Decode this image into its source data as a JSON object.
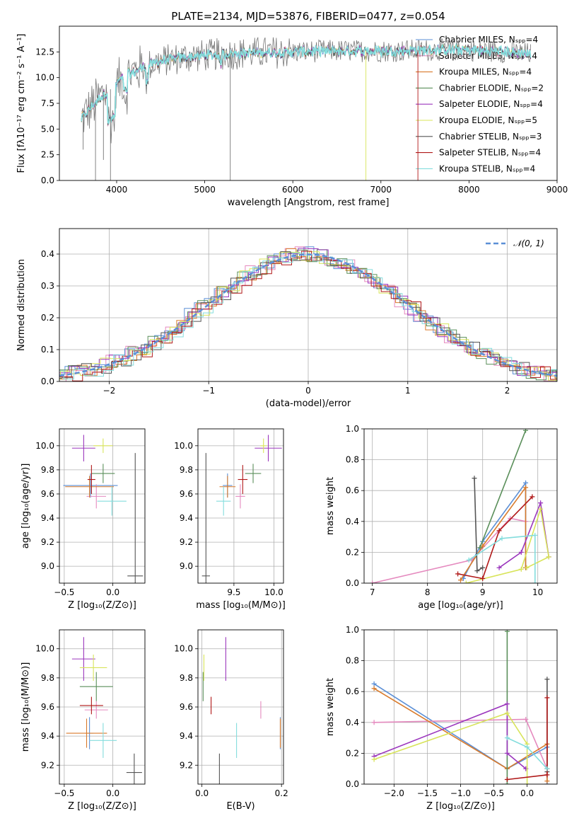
{
  "colors": {
    "c1": "#5b8fd6",
    "c2": "#e58abf",
    "c3": "#d97b2c",
    "c4": "#5a8f5a",
    "c5": "#9b36bd",
    "c6": "#d8e45a",
    "c7": "#555555",
    "c8": "#b01818",
    "c9": "#84dddd"
  },
  "legend": [
    "Chabrier MILES, Nₛₚₚ=4",
    "Salpeter MILES, Nₛₚₚ=4",
    "Kroupa MILES, Nₛₚₚ=4",
    "Chabrier ELODIE, Nₛₚₚ=2",
    "Salpeter ELODIE, Nₛₚₚ=4",
    "Kroupa ELODIE, Nₛₚₚ=5",
    "Chabrier STELIB, Nₛₚₚ=3",
    "Salpeter STELIB, Nₛₚₚ=4",
    "Kroupa STELIB, Nₛₚₚ=4"
  ],
  "chart_data": [
    {
      "id": "spectrum",
      "type": "line",
      "title": "PLATE=2134, MJD=53876, FIBERID=0477, z=0.054",
      "xlabel": "wavelength [Angstrom, rest frame]",
      "ylabel": "Flux [fλ10⁻¹⁷ erg cm⁻² s⁻¹ A⁻¹]",
      "xlim": [
        3350,
        9000
      ],
      "ylim": [
        0,
        15
      ],
      "xticks": [
        4000,
        5000,
        6000,
        7000,
        8000,
        9000
      ],
      "yticks": [
        0.0,
        2.5,
        5.0,
        7.5,
        10.0,
        12.5
      ],
      "continuum": {
        "x": [
          3600,
          3700,
          3800,
          3950,
          4100,
          4300,
          4500,
          4800,
          5200,
          5600,
          6000,
          6400,
          6800,
          7200,
          7600,
          8000,
          8400,
          8700
        ],
        "y": [
          6.0,
          7.0,
          8.0,
          9.0,
          10.2,
          11.0,
          11.6,
          12.0,
          12.3,
          12.4,
          12.5,
          12.6,
          12.6,
          12.6,
          12.7,
          12.7,
          12.5,
          12.3
        ]
      }
    },
    {
      "id": "residuals",
      "type": "line",
      "xlabel": "(data-model)/error",
      "ylabel": "Normed distribution",
      "xlim": [
        -2.5,
        2.5
      ],
      "ylim": [
        0,
        0.48
      ],
      "xticks": [
        -2,
        -1,
        0,
        1,
        2
      ],
      "yticks": [
        0.0,
        0.1,
        0.2,
        0.3,
        0.4
      ],
      "gaussian_label": "𝒩(0, 1)"
    },
    {
      "id": "age-vs-z",
      "type": "scatter",
      "xlabel": "Z [log₁₀(Z/Z⊙)]",
      "ylabel": "age  [log₁₀(age/yr)]",
      "xlim": [
        -0.55,
        0.33
      ],
      "ylim": [
        8.86,
        10.14
      ],
      "xticks": [
        -0.5,
        0.0
      ],
      "yticks": [
        9.0,
        9.2,
        9.4,
        9.6,
        9.8,
        10.0
      ],
      "points": [
        {
          "x": -0.23,
          "xerr": 0.28,
          "y": 9.67,
          "yerr": 0.1
        },
        {
          "x": -0.17,
          "xerr": 0.1,
          "y": 9.58,
          "yerr": 0.1
        },
        {
          "x": -0.24,
          "xerr": 0.25,
          "y": 9.66,
          "yerr": 0.09
        },
        {
          "x": -0.1,
          "xerr": 0.12,
          "y": 9.77,
          "yerr": 0.08
        },
        {
          "x": -0.3,
          "xerr": 0.12,
          "y": 9.98,
          "yerr": 0.11
        },
        {
          "x": -0.1,
          "xerr": 0.1,
          "y": 10.0,
          "yerr": 0.06
        },
        {
          "x": 0.23,
          "xerr": 0.08,
          "y": 8.92,
          "yerr": 1.02
        },
        {
          "x": -0.22,
          "xerr": 0.04,
          "y": 9.72,
          "yerr": 0.12
        },
        {
          "x": -0.01,
          "xerr": 0.15,
          "y": 9.54,
          "yerr": 0.12
        }
      ]
    },
    {
      "id": "age-vs-mass",
      "type": "scatter",
      "xlabel": "mass [log₁₀(M/M⊙)]",
      "ylabel": "",
      "xlim": [
        9.05,
        10.12
      ],
      "ylim": [
        8.86,
        10.14
      ],
      "xticks": [
        9.5,
        10.0
      ],
      "yticks": [
        9.0,
        9.2,
        9.4,
        9.6,
        9.8,
        10.0
      ],
      "points": [
        {
          "x": 9.42,
          "xerr": 0.06,
          "y": 9.67,
          "yerr": 0.1
        },
        {
          "x": 9.58,
          "xerr": 0.06,
          "y": 9.58,
          "yerr": 0.1
        },
        {
          "x": 9.42,
          "xerr": 0.1,
          "y": 9.66,
          "yerr": 0.09
        },
        {
          "x": 9.74,
          "xerr": 0.1,
          "y": 9.77,
          "yerr": 0.08
        },
        {
          "x": 9.93,
          "xerr": 0.17,
          "y": 9.98,
          "yerr": 0.11
        },
        {
          "x": 9.87,
          "xerr": 0.04,
          "y": 10.0,
          "yerr": 0.06
        },
        {
          "x": 9.15,
          "xerr": 0.05,
          "y": 8.92,
          "yerr": 1.02
        },
        {
          "x": 9.61,
          "xerr": 0.06,
          "y": 9.72,
          "yerr": 0.12
        },
        {
          "x": 9.37,
          "xerr": 0.09,
          "y": 9.54,
          "yerr": 0.12
        }
      ]
    },
    {
      "id": "weight-vs-age",
      "type": "line",
      "xlabel": "age  [log₁₀(age/yr)]",
      "ylabel": "mass weight",
      "xlim": [
        6.85,
        10.35
      ],
      "ylim": [
        0,
        1
      ],
      "xticks": [
        7,
        8,
        9,
        10
      ],
      "yticks": [
        0.0,
        0.2,
        0.4,
        0.6,
        0.8,
        1.0
      ],
      "series": [
        {
          "x": [
            8.65,
            9.0,
            9.78,
            9.78
          ],
          "y": [
            0.03,
            0.27,
            0.65,
            0.1
          ]
        },
        {
          "x": [
            7.0,
            8.8,
            9.5,
            9.78
          ],
          "y": [
            0.0,
            0.15,
            0.42,
            0.4
          ]
        },
        {
          "x": [
            8.6,
            9.0,
            9.78,
            9.78
          ],
          "y": [
            0.02,
            0.24,
            0.62,
            0.1
          ]
        },
        {
          "x": [
            8.95,
            9.78
          ],
          "y": [
            0.23,
            0.99
          ]
        },
        {
          "x": [
            9.3,
            9.7,
            10.05,
            10.2
          ],
          "y": [
            0.1,
            0.2,
            0.52,
            0.17
          ]
        },
        {
          "x": [
            8.7,
            9.7,
            10.05,
            10.2,
            9.8
          ],
          "y": [
            0.0,
            0.09,
            0.48,
            0.17,
            0.1
          ]
        },
        {
          "x": [
            8.85,
            8.9,
            9.0
          ],
          "y": [
            0.68,
            0.08,
            0.1
          ]
        },
        {
          "x": [
            8.55,
            9.0,
            9.3,
            9.9
          ],
          "y": [
            0.06,
            0.03,
            0.34,
            0.56
          ]
        },
        {
          "x": [
            8.75,
            9.35,
            9.95,
            9.95
          ],
          "y": [
            0.15,
            0.29,
            0.31,
            0.0
          ]
        }
      ]
    },
    {
      "id": "mass-vs-z",
      "type": "scatter",
      "xlabel": "Z [log₁₀(Z/Z⊙)]",
      "ylabel": "mass [log₁₀(M/M⊙)]",
      "xlim": [
        -0.55,
        0.33
      ],
      "ylim": [
        9.07,
        10.13
      ],
      "xticks": [
        -0.5,
        0.0
      ],
      "yticks": [
        9.2,
        9.4,
        9.6,
        9.8,
        10.0
      ],
      "points": [
        {
          "x": -0.24,
          "xerr": 0.04,
          "y": 9.42,
          "yerr": 0.11
        },
        {
          "x": -0.17,
          "xerr": 0.12,
          "y": 9.58,
          "yerr": 0.06
        },
        {
          "x": -0.27,
          "xerr": 0.21,
          "y": 9.42,
          "yerr": 0.1
        },
        {
          "x": -0.17,
          "xerr": 0.17,
          "y": 9.74,
          "yerr": 0.1
        },
        {
          "x": -0.3,
          "xerr": 0.12,
          "y": 9.93,
          "yerr": 0.15
        },
        {
          "x": -0.2,
          "xerr": 0.14,
          "y": 9.87,
          "yerr": 0.09
        },
        {
          "x": 0.22,
          "xerr": 0.08,
          "y": 9.15,
          "yerr": 0.13
        },
        {
          "x": -0.22,
          "xerr": 0.12,
          "y": 9.61,
          "yerr": 0.06
        },
        {
          "x": -0.1,
          "xerr": 0.14,
          "y": 9.37,
          "yerr": 0.12
        }
      ]
    },
    {
      "id": "mass-vs-ebv",
      "type": "scatter",
      "xlabel": "E(B-V)",
      "ylabel": "",
      "xlim": [
        -0.01,
        0.205
      ],
      "ylim": [
        9.07,
        10.13
      ],
      "xticks": [
        0.0,
        0.2
      ],
      "yticks": [
        9.2,
        9.4,
        9.6,
        9.8,
        10.0
      ],
      "points": [
        {
          "x": 0.197,
          "y": 9.42,
          "yerr": 0.11
        },
        {
          "x": 0.148,
          "y": 9.58,
          "yerr": 0.06
        },
        {
          "x": 0.197,
          "y": 9.42,
          "yerr": 0.1
        },
        {
          "x": 0.003,
          "y": 9.74,
          "yerr": 0.1
        },
        {
          "x": 0.06,
          "y": 9.93,
          "yerr": 0.15
        },
        {
          "x": 0.005,
          "y": 9.87,
          "yerr": 0.09
        },
        {
          "x": 0.044,
          "y": 9.15,
          "yerr": 0.13
        },
        {
          "x": 0.023,
          "y": 9.61,
          "yerr": 0.06
        },
        {
          "x": 0.087,
          "y": 9.37,
          "yerr": 0.12
        }
      ]
    },
    {
      "id": "weight-vs-z",
      "type": "line",
      "xlabel": "Z [log₁₀(Z/Z⊙)]",
      "ylabel": "mass weight",
      "xlim": [
        -2.45,
        0.45
      ],
      "ylim": [
        0,
        1
      ],
      "xticks": [
        -2.0,
        -1.5,
        -1.0,
        -0.5,
        0.0
      ],
      "yticks": [
        0.0,
        0.2,
        0.4,
        0.6,
        0.8,
        1.0
      ],
      "series": [
        {
          "x": [
            -2.3,
            -0.3,
            0.3,
            0.3
          ],
          "y": [
            0.65,
            0.1,
            0.24,
            0.0
          ]
        },
        {
          "x": [
            -2.3,
            -0.02,
            0.3
          ],
          "y": [
            0.4,
            0.42,
            0.1
          ]
        },
        {
          "x": [
            -2.3,
            -0.3,
            0.3,
            0.3
          ],
          "y": [
            0.62,
            0.1,
            0.26,
            0.02
          ]
        },
        {
          "x": [
            -0.3,
            -0.3
          ],
          "y": [
            0.0,
            0.99
          ]
        },
        {
          "x": [
            -2.3,
            -0.3,
            -0.3,
            -0.02
          ],
          "y": [
            0.18,
            0.52,
            0.2,
            0.1
          ]
        },
        {
          "x": [
            -2.3,
            -0.3,
            0.0,
            0.0
          ],
          "y": [
            0.16,
            0.46,
            0.26,
            0.0
          ]
        },
        {
          "x": [
            0.3,
            0.3,
            0.3
          ],
          "y": [
            0.68,
            0.08,
            0.1
          ]
        },
        {
          "x": [
            -0.3,
            0.3,
            0.3
          ],
          "y": [
            0.03,
            0.06,
            0.56
          ]
        },
        {
          "x": [
            -0.3,
            0.0,
            0.3
          ],
          "y": [
            0.3,
            0.24,
            0.1
          ]
        }
      ]
    }
  ]
}
